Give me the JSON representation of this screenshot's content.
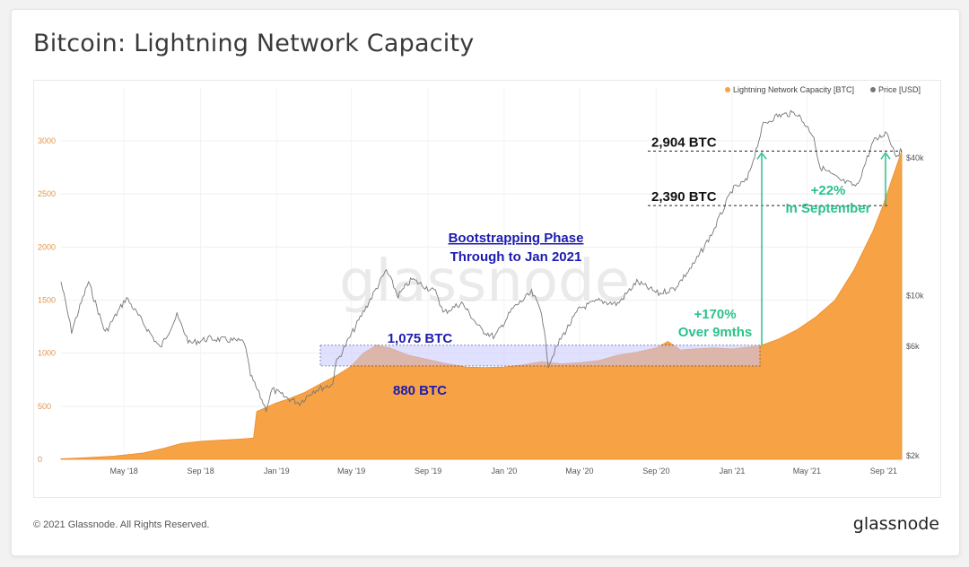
{
  "page": {
    "title": "Bitcoin: Lightning Network Capacity",
    "copyright": "© 2021 Glassnode. All Rights Reserved.",
    "logo": "glassnode",
    "watermark": "glassnode"
  },
  "colors": {
    "capacity": "#f7a245",
    "capacity_dark": "#e98e2d",
    "price": "#777777",
    "annotation_green": "#2bc28a",
    "annotation_blue": "#1c1cb0",
    "box_fill": "#c8c8ff"
  },
  "chart_data": {
    "type": "area",
    "title": "Bitcoin: Lightning Network Capacity",
    "legend": [
      {
        "name": "Lightning Network Capacity [BTC]",
        "color": "#f7a245"
      },
      {
        "name": "Price [USD]",
        "color": "#777777"
      }
    ],
    "legend_position": "top-right",
    "x_ticks": [
      "May '18",
      "Sep '18",
      "Jan '19",
      "May '19",
      "Sep '19",
      "Jan '20",
      "May '20",
      "Sep '20",
      "Jan '21",
      "May '21",
      "Sep '21"
    ],
    "x_tick_dates": [
      "2018-05-01",
      "2018-09-01",
      "2019-01-01",
      "2019-05-01",
      "2019-09-01",
      "2020-01-01",
      "2020-05-01",
      "2020-09-01",
      "2021-01-01",
      "2021-05-01",
      "2021-09-01"
    ],
    "x_range": [
      "2018-01-20",
      "2021-09-30"
    ],
    "y_left_ticks": [
      "0",
      "500",
      "1000",
      "1500",
      "2000",
      "2500",
      "3000"
    ],
    "y_left_range": [
      0,
      3400
    ],
    "y_right_ticks": [
      "$2k",
      "$6k",
      "$10k",
      "$40k"
    ],
    "y_right_values": [
      2000,
      6000,
      10000,
      40000
    ],
    "y_right_scale": "log",
    "grid": true,
    "series": [
      {
        "name": "Lightning Network Capacity [BTC]",
        "type": "area",
        "points": [
          [
            "2018-01-20",
            5
          ],
          [
            "2018-03-01",
            15
          ],
          [
            "2018-04-15",
            30
          ],
          [
            "2018-06-01",
            60
          ],
          [
            "2018-07-01",
            100
          ],
          [
            "2018-08-01",
            150
          ],
          [
            "2018-09-01",
            170
          ],
          [
            "2018-10-01",
            180
          ],
          [
            "2018-11-01",
            190
          ],
          [
            "2018-11-25",
            200
          ],
          [
            "2018-11-30",
            450
          ],
          [
            "2018-12-31",
            530
          ],
          [
            "2019-01-20",
            570
          ],
          [
            "2019-02-15",
            630
          ],
          [
            "2019-03-15",
            720
          ],
          [
            "2019-04-10",
            800
          ],
          [
            "2019-05-01",
            880
          ],
          [
            "2019-05-20",
            1000
          ],
          [
            "2019-06-10",
            1075
          ],
          [
            "2019-07-01",
            1050
          ],
          [
            "2019-08-01",
            980
          ],
          [
            "2019-09-01",
            940
          ],
          [
            "2019-10-01",
            900
          ],
          [
            "2019-11-01",
            870
          ],
          [
            "2019-12-01",
            865
          ],
          [
            "2020-01-01",
            870
          ],
          [
            "2020-02-01",
            890
          ],
          [
            "2020-03-01",
            920
          ],
          [
            "2020-04-01",
            900
          ],
          [
            "2020-05-01",
            910
          ],
          [
            "2020-06-01",
            930
          ],
          [
            "2020-07-01",
            980
          ],
          [
            "2020-08-01",
            1010
          ],
          [
            "2020-09-01",
            1050
          ],
          [
            "2020-09-20",
            1110
          ],
          [
            "2020-10-10",
            1030
          ],
          [
            "2020-11-01",
            1040
          ],
          [
            "2020-12-01",
            1050
          ],
          [
            "2021-01-01",
            1040
          ],
          [
            "2021-02-15",
            1070
          ],
          [
            "2021-03-15",
            1130
          ],
          [
            "2021-04-15",
            1220
          ],
          [
            "2021-05-15",
            1340
          ],
          [
            "2021-06-15",
            1500
          ],
          [
            "2021-07-15",
            1780
          ],
          [
            "2021-08-15",
            2150
          ],
          [
            "2021-08-31",
            2390
          ],
          [
            "2021-09-15",
            2650
          ],
          [
            "2021-09-30",
            2904
          ]
        ]
      },
      {
        "name": "Price [USD]",
        "type": "line",
        "axis": "right",
        "points": [
          [
            "2018-01-20",
            11500
          ],
          [
            "2018-02-06",
            7000
          ],
          [
            "2018-03-05",
            11500
          ],
          [
            "2018-04-01",
            6900
          ],
          [
            "2018-05-05",
            9800
          ],
          [
            "2018-06-28",
            5900
          ],
          [
            "2018-07-25",
            8200
          ],
          [
            "2018-08-14",
            6200
          ],
          [
            "2018-09-15",
            6500
          ],
          [
            "2018-10-15",
            6400
          ],
          [
            "2018-11-10",
            6300
          ],
          [
            "2018-11-20",
            4500
          ],
          [
            "2018-12-15",
            3200
          ],
          [
            "2018-12-25",
            3900
          ],
          [
            "2019-01-15",
            3600
          ],
          [
            "2019-02-07",
            3400
          ],
          [
            "2019-03-01",
            3850
          ],
          [
            "2019-04-01",
            4100
          ],
          [
            "2019-04-05",
            5000
          ],
          [
            "2019-05-15",
            8000
          ],
          [
            "2019-06-26",
            12900
          ],
          [
            "2019-07-15",
            10000
          ],
          [
            "2019-08-06",
            11800
          ],
          [
            "2019-09-15",
            10300
          ],
          [
            "2019-09-25",
            8400
          ],
          [
            "2019-10-25",
            9300
          ],
          [
            "2019-11-25",
            7100
          ],
          [
            "2019-12-17",
            6600
          ],
          [
            "2020-01-15",
            8800
          ],
          [
            "2020-02-14",
            10300
          ],
          [
            "2020-03-01",
            8600
          ],
          [
            "2020-03-12",
            5000
          ],
          [
            "2020-04-01",
            6500
          ],
          [
            "2020-05-01",
            8800
          ],
          [
            "2020-06-01",
            9500
          ],
          [
            "2020-07-01",
            9200
          ],
          [
            "2020-08-01",
            11500
          ],
          [
            "2020-09-05",
            10200
          ],
          [
            "2020-10-01",
            10800
          ],
          [
            "2020-11-01",
            13800
          ],
          [
            "2020-12-01",
            19000
          ],
          [
            "2021-01-01",
            29000
          ],
          [
            "2021-01-25",
            32000
          ],
          [
            "2021-02-20",
            56000
          ],
          [
            "2021-03-13",
            61000
          ],
          [
            "2021-04-14",
            63000
          ],
          [
            "2021-05-12",
            50000
          ],
          [
            "2021-05-20",
            37000
          ],
          [
            "2021-06-22",
            32000
          ],
          [
            "2021-07-20",
            30000
          ],
          [
            "2021-08-15",
            47000
          ],
          [
            "2021-09-06",
            52000
          ],
          [
            "2021-09-21",
            41000
          ],
          [
            "2021-09-30",
            43000
          ]
        ]
      }
    ],
    "annotations": {
      "bootstrapping_line1": "Bootstrapping Phase",
      "bootstrapping_line2": "Through to Jan 2021",
      "box_top_label": "1,075 BTC",
      "box_bottom_label": "880 BTC",
      "level_2904": "2,904 BTC",
      "level_2390": "2,390 BTC",
      "growth_170": "+170%",
      "growth_170_sub": "Over 9mths",
      "growth_22": "+22%",
      "growth_22_sub": "In September"
    }
  }
}
